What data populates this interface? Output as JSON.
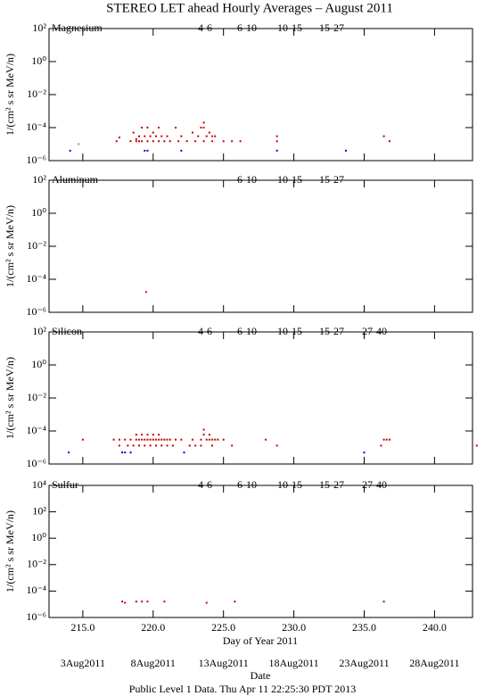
{
  "title": "STEREO LET ahead Hourly Averages – August 2011",
  "xlabel": "Day of Year 2011",
  "date_label": "Date",
  "footer": "Public Level 1 Data. Thu Apr 11 22:25:30 PDT 2013",
  "date_ticks": [
    {
      "value": 215,
      "label": "3Aug2011"
    },
    {
      "value": 220,
      "label": "8Aug2011"
    },
    {
      "value": 225,
      "label": "13Aug2011"
    },
    {
      "value": 230,
      "label": "18Aug2011"
    },
    {
      "value": 235,
      "label": "23Aug2011"
    },
    {
      "value": 240,
      "label": "28Aug2011"
    }
  ],
  "chart_data": [
    {
      "type": "scatter",
      "label": "Magnesium",
      "ylabel": "1/(cm² s sr MeV/n)",
      "log_y": true,
      "xlim": [
        212.6,
        242.7
      ],
      "xticks": [
        215,
        220,
        225,
        230,
        235,
        240
      ],
      "ylim": [
        1e-06,
        100
      ],
      "yticks": [
        {
          "value": 1e-06,
          "label": "10⁻⁶"
        },
        {
          "value": 0.0001,
          "label": "10⁻⁴"
        },
        {
          "value": 0.01,
          "label": "10⁻²"
        },
        {
          "value": 1,
          "label": "10⁰"
        },
        {
          "value": 100,
          "label": "10²"
        }
      ],
      "series": [
        {
          "name": "4-6",
          "color": "#c00000",
          "x": [
            217.4,
            217.6,
            218.4,
            218.6,
            218.8,
            219.0,
            219.0,
            219.2,
            219.2,
            219.4,
            219.6,
            219.6,
            219.8,
            220.0,
            220.0,
            220.2,
            220.4,
            220.4,
            220.6,
            220.8,
            221.0,
            221.2,
            221.6,
            221.8,
            222.0,
            222.4,
            222.8,
            223.0,
            223.2,
            223.4,
            223.6,
            223.6,
            223.8,
            224.0,
            224.2,
            224.4,
            225.0,
            225.6,
            226.2,
            228.8,
            228.8,
            236.4,
            236.8
          ],
          "values": [
            1.5e-05,
            2.5e-05,
            1.5e-05,
            5e-05,
            1.5e-05,
            1.5e-05,
            3e-05,
            0.0001,
            1.5e-05,
            3e-05,
            0.0001,
            1.5e-05,
            3e-05,
            1.5e-05,
            5e-05,
            3e-05,
            0.0001,
            1.5e-05,
            3e-05,
            1.5e-05,
            3e-05,
            1.5e-05,
            0.0001,
            1.5e-05,
            3e-05,
            1.5e-05,
            5e-05,
            1.5e-05,
            3e-05,
            0.0001,
            0.0002,
            1.5e-05,
            3e-05,
            5e-05,
            1.5e-05,
            3e-05,
            1.5e-05,
            1.5e-05,
            1.5e-05,
            1.5e-05,
            3e-05,
            3e-05,
            1.5e-05
          ]
        },
        {
          "name": "6-10",
          "color": "#ff0000",
          "x": [
            218.8,
            223.6,
            224.2
          ],
          "values": [
            2e-05,
            0.0001,
            3e-05
          ]
        },
        {
          "name": "10-15",
          "color": "#909090",
          "x": [
            214.7
          ],
          "values": [
            1e-05
          ]
        },
        {
          "name": "15-27",
          "color": "#0000e0",
          "x": [
            214.1,
            219.4,
            219.6,
            222.0,
            228.8,
            233.7
          ],
          "values": [
            4e-06,
            4e-06,
            4e-06,
            4e-06,
            4e-06,
            4e-06
          ]
        }
      ]
    },
    {
      "type": "scatter",
      "label": "Aluminum",
      "ylabel": "1/(cm² s sr MeV/n)",
      "log_y": true,
      "xlim": [
        212.6,
        242.7
      ],
      "xticks": [
        215,
        220,
        225,
        230,
        235,
        240
      ],
      "ylim": [
        1e-06,
        100
      ],
      "yticks": [
        {
          "value": 1e-06,
          "label": "10⁻⁶"
        },
        {
          "value": 0.0001,
          "label": "10⁻⁴"
        },
        {
          "value": 0.01,
          "label": "10⁻²"
        },
        {
          "value": 1,
          "label": "10⁰"
        },
        {
          "value": 100,
          "label": "10²"
        }
      ],
      "series": [
        {
          "name": "6-10",
          "color": "#ff0000",
          "x": [
            219.5
          ],
          "values": [
            1.7e-05
          ]
        },
        {
          "name": "10-15",
          "color": "#909090",
          "x": [],
          "values": []
        },
        {
          "name": "15-27",
          "color": "#0000e0",
          "x": [],
          "values": []
        }
      ]
    },
    {
      "type": "scatter",
      "label": "Silicon",
      "ylabel": "1/(cm² s sr MeV/n)",
      "log_y": true,
      "xlim": [
        212.6,
        242.7
      ],
      "xticks": [
        215,
        220,
        225,
        230,
        235,
        240
      ],
      "ylim": [
        1e-06,
        100
      ],
      "yticks": [
        {
          "value": 1e-06,
          "label": "10⁻⁶"
        },
        {
          "value": 0.0001,
          "label": "10⁻⁴"
        },
        {
          "value": 0.01,
          "label": "10⁻²"
        },
        {
          "value": 1,
          "label": "10⁰"
        },
        {
          "value": 100,
          "label": "10²"
        }
      ],
      "series": [
        {
          "name": "4-6",
          "color": "#c00000",
          "x": [
            215.0,
            217.2,
            217.6,
            218.0,
            218.4,
            218.8,
            219.0,
            219.2,
            219.4,
            219.6,
            219.8,
            220.0,
            220.2,
            220.4,
            220.6,
            220.8,
            221.0,
            221.2,
            221.6,
            222.0,
            222.8,
            223.4,
            223.8,
            224.0,
            224.2,
            224.4,
            224.6,
            225.0,
            228.0,
            236.4,
            236.6,
            236.8,
            218.8,
            219.2,
            219.6,
            220.0,
            220.4,
            223.6,
            224.0,
            217.6,
            218.2,
            218.6,
            219.0,
            219.4,
            219.8,
            220.2,
            220.6,
            221.0,
            221.4,
            222.6,
            223.0,
            223.4,
            224.2,
            225.6,
            228.8,
            236.2,
            243.0,
            223.6
          ],
          "values": [
            3e-05,
            3e-05,
            3e-05,
            3e-05,
            3e-05,
            3e-05,
            3e-05,
            3e-05,
            3e-05,
            3e-05,
            3e-05,
            3e-05,
            3e-05,
            3e-05,
            3e-05,
            3e-05,
            3e-05,
            3e-05,
            3e-05,
            3e-05,
            3e-05,
            3e-05,
            3e-05,
            3e-05,
            3e-05,
            3e-05,
            3e-05,
            3e-05,
            3e-05,
            3e-05,
            3e-05,
            3e-05,
            6e-05,
            6e-05,
            6e-05,
            6e-05,
            6e-05,
            6e-05,
            6e-05,
            1.3e-05,
            1.3e-05,
            1.3e-05,
            1.3e-05,
            1.3e-05,
            1.3e-05,
            1.3e-05,
            1.3e-05,
            1.3e-05,
            1.3e-05,
            1.3e-05,
            1.3e-05,
            1.3e-05,
            1.3e-05,
            1.3e-05,
            1.3e-05,
            1.3e-05,
            1.3e-05,
            0.00012
          ]
        },
        {
          "name": "6-10",
          "color": "#ff0000",
          "x": [],
          "values": []
        },
        {
          "name": "10-15",
          "color": "#909090",
          "x": [],
          "values": []
        },
        {
          "name": "15-27",
          "color": "#0000e0",
          "x": [
            214.0,
            217.8,
            218.0,
            218.4,
            222.2,
            235.0
          ],
          "values": [
            5e-06,
            5e-06,
            5e-06,
            5e-06,
            5e-06,
            5e-06
          ]
        },
        {
          "name": "27-40",
          "color": "#000000",
          "x": [],
          "values": []
        }
      ]
    },
    {
      "type": "scatter",
      "label": "Sulfur",
      "ylabel": "1/(cm² s sr MeV/n)",
      "log_y": true,
      "xlim": [
        212.6,
        242.7
      ],
      "xticks": [
        {
          "value": 215,
          "label": "215.0"
        },
        {
          "value": 220,
          "label": "220.0"
        },
        {
          "value": 225,
          "label": "225.0"
        },
        {
          "value": 230,
          "label": "230.0"
        },
        {
          "value": 235,
          "label": "235.0"
        },
        {
          "value": 240,
          "label": "240.0"
        }
      ],
      "ylim": [
        1e-06,
        10000
      ],
      "yticks": [
        {
          "value": 1e-06,
          "label": "10⁻⁶"
        },
        {
          "value": 0.0001,
          "label": "10⁻⁴"
        },
        {
          "value": 0.01,
          "label": "10⁻²"
        },
        {
          "value": 1,
          "label": "10⁰"
        },
        {
          "value": 100,
          "label": "10²"
        },
        {
          "value": 10000,
          "label": "10⁴"
        }
      ],
      "series": [
        {
          "name": "4-6",
          "color": "#c00000",
          "x": [
            217.8,
            218.0,
            218.8,
            219.2,
            219.6,
            220.8,
            223.8,
            225.8,
            236.4
          ],
          "values": [
            1.6e-05,
            1.3e-05,
            1.6e-05,
            1.6e-05,
            1.6e-05,
            1.6e-05,
            1.3e-05,
            1.6e-05,
            1.6e-05
          ]
        },
        {
          "name": "6-10",
          "color": "#ff0000",
          "x": [],
          "values": []
        },
        {
          "name": "10-15",
          "color": "#909090",
          "x": [],
          "values": []
        },
        {
          "name": "15-27",
          "color": "#0000e0",
          "x": [],
          "values": []
        },
        {
          "name": "27-40",
          "color": "#000000",
          "x": [],
          "values": []
        }
      ]
    }
  ]
}
